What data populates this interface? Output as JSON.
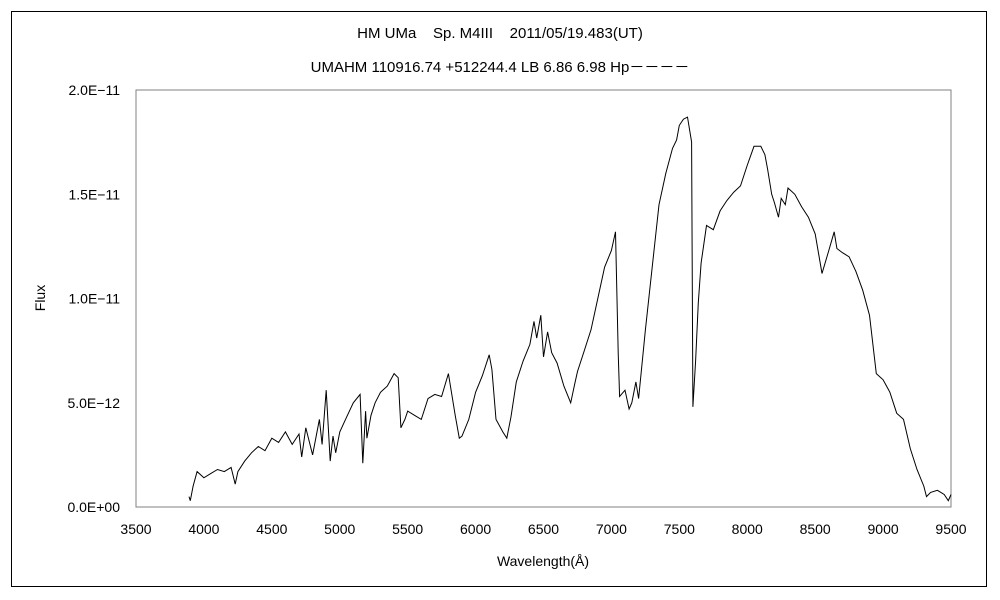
{
  "chart_data": {
    "type": "line",
    "title": "HM UMa    Sp. M4III    2011/05/19.483(UT)",
    "subtitle": "UMAHM 110916.74 +512244.4 LB 6.86 6.98 Hp－－－－",
    "xlabel": "Wavelength(Å)",
    "ylabel": "Flux",
    "xlim": [
      3500,
      9500
    ],
    "ylim": [
      0,
      2e-11
    ],
    "x_ticks": [
      3500,
      4000,
      4500,
      5000,
      5500,
      6000,
      6500,
      7000,
      7500,
      8000,
      8500,
      9000,
      9500
    ],
    "x_tick_labels": [
      "3500",
      "4000",
      "4500",
      "5000",
      "5500",
      "6000",
      "6500",
      "7000",
      "7500",
      "8000",
      "8500",
      "9000",
      "9500"
    ],
    "y_ticks": [
      0,
      5e-12,
      1e-11,
      1.5e-11,
      2e-11
    ],
    "y_tick_labels": [
      "0.0E+00",
      "5.0E−12",
      "1.0E−11",
      "1.5E−11",
      "2.0E−11"
    ],
    "grid": false,
    "series": [
      {
        "color": "#000000",
        "x": [
          3890,
          3900,
          3920,
          3950,
          4000,
          4050,
          4100,
          4150,
          4200,
          4230,
          4250,
          4300,
          4350,
          4400,
          4450,
          4500,
          4550,
          4600,
          4650,
          4700,
          4720,
          4750,
          4800,
          4850,
          4870,
          4900,
          4930,
          4950,
          4970,
          5000,
          5050,
          5100,
          5150,
          5170,
          5190,
          5200,
          5230,
          5260,
          5300,
          5350,
          5400,
          5430,
          5450,
          5480,
          5500,
          5550,
          5600,
          5650,
          5700,
          5750,
          5800,
          5850,
          5880,
          5900,
          5950,
          6000,
          6050,
          6100,
          6120,
          6150,
          6200,
          6230,
          6260,
          6300,
          6350,
          6400,
          6430,
          6450,
          6480,
          6500,
          6530,
          6560,
          6600,
          6650,
          6700,
          6730,
          6750,
          6800,
          6850,
          6900,
          6950,
          7000,
          7030,
          7050,
          7060,
          7100,
          7130,
          7150,
          7180,
          7200,
          7250,
          7300,
          7350,
          7400,
          7450,
          7480,
          7500,
          7530,
          7560,
          7590,
          7600,
          7620,
          7640,
          7660,
          7700,
          7750,
          7800,
          7850,
          7900,
          7950,
          8000,
          8050,
          8100,
          8130,
          8150,
          8180,
          8200,
          8230,
          8250,
          8280,
          8300,
          8350,
          8400,
          8450,
          8500,
          8550,
          8600,
          8640,
          8660,
          8700,
          8750,
          8800,
          8850,
          8900,
          8950,
          9000,
          9050,
          9100,
          9150,
          9200,
          9250,
          9300,
          9320,
          9350,
          9400,
          9450,
          9480,
          9500
        ],
        "y": [
          5e-13,
          3e-13,
          1e-12,
          1.7e-12,
          1.4e-12,
          1.6e-12,
          1.8e-12,
          1.7e-12,
          1.9e-12,
          1.1e-12,
          1.7e-12,
          2.2e-12,
          2.6e-12,
          2.9e-12,
          2.7e-12,
          3.3e-12,
          3.1e-12,
          3.6e-12,
          3e-12,
          3.5e-12,
          2.4e-12,
          3.8e-12,
          2.5e-12,
          4.2e-12,
          3e-12,
          5.6e-12,
          2.2e-12,
          3.4e-12,
          2.6e-12,
          3.6e-12,
          4.3e-12,
          5e-12,
          5.4e-12,
          2.1e-12,
          4.6e-12,
          3.3e-12,
          4.4e-12,
          5e-12,
          5.5e-12,
          5.8e-12,
          6.4e-12,
          6.2e-12,
          3.8e-12,
          4.2e-12,
          4.6e-12,
          4.4e-12,
          4.2e-12,
          5.2e-12,
          5.4e-12,
          5.3e-12,
          6.4e-12,
          4.4e-12,
          3.3e-12,
          3.4e-12,
          4.2e-12,
          5.5e-12,
          6.3e-12,
          7.3e-12,
          6.6e-12,
          4.2e-12,
          3.6e-12,
          3.3e-12,
          4.3e-12,
          6e-12,
          7e-12,
          7.8e-12,
          8.9e-12,
          8.1e-12,
          9.2e-12,
          7.2e-12,
          8.4e-12,
          7.4e-12,
          6.9e-12,
          5.8e-12,
          5e-12,
          5.9e-12,
          6.5e-12,
          7.5e-12,
          8.5e-12,
          1e-11,
          1.15e-11,
          1.23e-11,
          1.32e-11,
          7.4e-12,
          5.3e-12,
          5.6e-12,
          4.7e-12,
          5e-12,
          6e-12,
          5.2e-12,
          8.5e-12,
          1.15e-11,
          1.45e-11,
          1.6e-11,
          1.72e-11,
          1.76e-11,
          1.83e-11,
          1.86e-11,
          1.87e-11,
          1.75e-11,
          4.8e-12,
          7e-12,
          9.8e-12,
          1.17e-11,
          1.35e-11,
          1.33e-11,
          1.42e-11,
          1.47e-11,
          1.51e-11,
          1.54e-11,
          1.64e-11,
          1.73e-11,
          1.73e-11,
          1.69e-11,
          1.62e-11,
          1.5e-11,
          1.46e-11,
          1.39e-11,
          1.48e-11,
          1.45e-11,
          1.53e-11,
          1.5e-11,
          1.44e-11,
          1.39e-11,
          1.31e-11,
          1.12e-11,
          1.23e-11,
          1.32e-11,
          1.24e-11,
          1.22e-11,
          1.2e-11,
          1.13e-11,
          1.04e-11,
          9.2e-12,
          6.4e-12,
          6.1e-12,
          5.5e-12,
          4.5e-12,
          4.2e-12,
          2.8e-12,
          1.8e-12,
          1e-12,
          5e-13,
          7e-13,
          8e-13,
          6e-13,
          3e-13,
          6e-13
        ]
      }
    ]
  }
}
